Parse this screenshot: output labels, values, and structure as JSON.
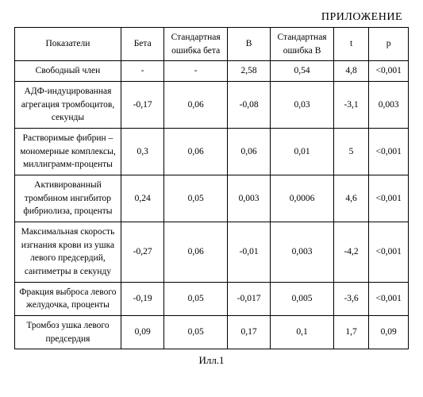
{
  "appendix_label": "ПРИЛОЖЕНИЕ",
  "caption": "Илл.1",
  "table": {
    "columns": [
      "Показатели",
      "Бета",
      "Стандартная ошибка бета",
      "B",
      "Стандартная ошибка B",
      "t",
      "p"
    ],
    "rows": [
      {
        "label": "Свободный член",
        "beta": "-",
        "se_beta": "-",
        "b": "2,58",
        "se_b": "0,54",
        "t": "4,8",
        "p": "<0,001"
      },
      {
        "label": "АДФ-индуцированная агрегация тромбоцитов, секунды",
        "beta": "-0,17",
        "se_beta": "0,06",
        "b": "-0,08",
        "se_b": "0,03",
        "t": "-3,1",
        "p": "0,003"
      },
      {
        "label": "Растворимые фибрин – мономерные комплексы, миллиграмм-проценты",
        "beta": "0,3",
        "se_beta": "0,06",
        "b": "0,06",
        "se_b": "0,01",
        "t": "5",
        "p": "<0,001"
      },
      {
        "label": "Активированный тромбином ингибитор фибриолиза, проценты",
        "beta": "0,24",
        "se_beta": "0,05",
        "b": "0,003",
        "se_b": "0,0006",
        "t": "4,6",
        "p": "<0,001"
      },
      {
        "label": "Максимальная скорость изгнания крови из ушка левого предсердий, сантиметры в секунду",
        "beta": "-0,27",
        "se_beta": "0,06",
        "b": "-0,01",
        "se_b": "0,003",
        "t": "-4,2",
        "p": "<0,001"
      },
      {
        "label": "Фракция выброса левого желудочка, проценты",
        "beta": "-0,19",
        "se_beta": "0,05",
        "b": "-0,017",
        "se_b": "0,005",
        "t": "-3,6",
        "p": "<0,001"
      },
      {
        "label": "Тромбоз ушка левого предсердия",
        "beta": "0,09",
        "se_beta": "0,05",
        "b": "0,17",
        "se_b": "0,1",
        "t": "1,7",
        "p": "0,09"
      }
    ]
  }
}
